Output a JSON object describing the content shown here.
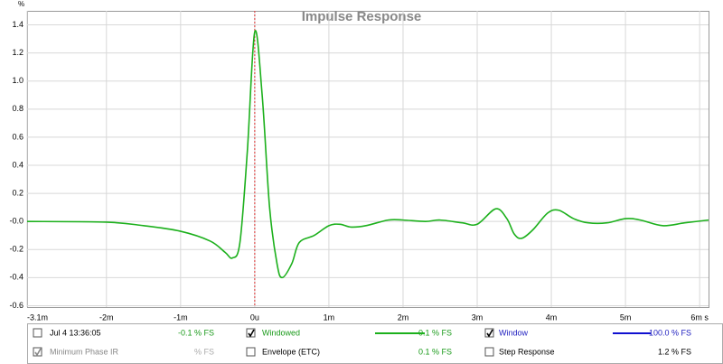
{
  "chart_data": {
    "type": "line",
    "title": "Impulse Response",
    "y_unit": "%",
    "xlim": [
      -3.07,
      6.12
    ],
    "ylim": [
      -0.61,
      1.5
    ],
    "xticks": [
      {
        "value": -3.07,
        "label": "-3.1m"
      },
      {
        "value": -2,
        "label": "-2m"
      },
      {
        "value": -1,
        "label": "-1m"
      },
      {
        "value": 0,
        "label": "0u"
      },
      {
        "value": 1,
        "label": "1m"
      },
      {
        "value": 2,
        "label": "2m"
      },
      {
        "value": 3,
        "label": "3m"
      },
      {
        "value": 4,
        "label": "4m"
      },
      {
        "value": 5,
        "label": "5m"
      },
      {
        "value": 6,
        "label": "6m s"
      }
    ],
    "yticks": [
      {
        "value": -0.6,
        "label": "-0.6"
      },
      {
        "value": -0.4,
        "label": "-0.4"
      },
      {
        "value": -0.2,
        "label": "-0.2"
      },
      {
        "value": 0,
        "label": "-0.0"
      },
      {
        "value": 0.2,
        "label": "0.2"
      },
      {
        "value": 0.4,
        "label": "0.4"
      },
      {
        "value": 0.6,
        "label": "0.6"
      },
      {
        "value": 0.8,
        "label": "0.8"
      },
      {
        "value": 1,
        "label": "1.0"
      },
      {
        "value": 1.2,
        "label": "1.2"
      },
      {
        "value": 1.4,
        "label": "1.4"
      }
    ],
    "grid": true,
    "cursor_x": 0,
    "cursor_color": "#e03030",
    "x": [
      -3.07,
      -2,
      -1.5,
      -1,
      -0.6,
      -0.4,
      -0.3,
      -0.2,
      -0.1,
      0,
      0.1,
      0.2,
      0.3,
      0.37,
      0.5,
      0.6,
      0.8,
      1.0,
      1.15,
      1.3,
      1.5,
      1.8,
      2.0,
      2.3,
      2.5,
      2.8,
      3.0,
      3.25,
      3.4,
      3.5,
      3.6,
      3.75,
      3.95,
      4.1,
      4.3,
      4.5,
      4.75,
      5.0,
      5.2,
      5.5,
      5.8,
      6.12
    ],
    "series": [
      {
        "name": "Windowed",
        "color": "#1cb01c",
        "values": [
          0.0,
          -0.005,
          -0.03,
          -0.07,
          -0.14,
          -0.22,
          -0.26,
          -0.15,
          0.5,
          1.35,
          0.9,
          0.1,
          -0.3,
          -0.4,
          -0.3,
          -0.15,
          -0.1,
          -0.03,
          -0.02,
          -0.04,
          -0.03,
          0.01,
          0.01,
          0.0,
          0.01,
          -0.01,
          -0.02,
          0.09,
          0.02,
          -0.09,
          -0.12,
          -0.06,
          0.06,
          0.08,
          0.02,
          -0.01,
          -0.01,
          0.02,
          0.01,
          -0.03,
          -0.01,
          0.01
        ]
      }
    ]
  },
  "legend_panel": [
    {
      "label": "Jul 4 13:36:05",
      "value": "-0.1 % FS",
      "checked": false,
      "label_color": "#000000",
      "value_color": "#1a9a1a"
    },
    {
      "label": "Windowed",
      "value": "-0.1 % FS",
      "checked": true,
      "label_color": "#1a9a1a",
      "value_color": "#1a9a1a",
      "line_color": "#1cb01c"
    },
    {
      "label": "Window",
      "value": "100.0 % FS",
      "checked": true,
      "label_color": "#2020c0",
      "value_color": "#2020c0",
      "line_color": "#1010d0"
    },
    {
      "label": "Minimum Phase IR",
      "value": "% FS",
      "checked": true,
      "label_color": "#888888",
      "value_color": "#aaaaaa"
    },
    {
      "label": "Envelope (ETC)",
      "value": "0.1 % FS",
      "checked": false,
      "label_color": "#000000",
      "value_color": "#1a9a1a"
    },
    {
      "label": "Step Response",
      "value": "1.2 % FS",
      "checked": false,
      "label_color": "#000000",
      "value_color": "#000000"
    }
  ]
}
